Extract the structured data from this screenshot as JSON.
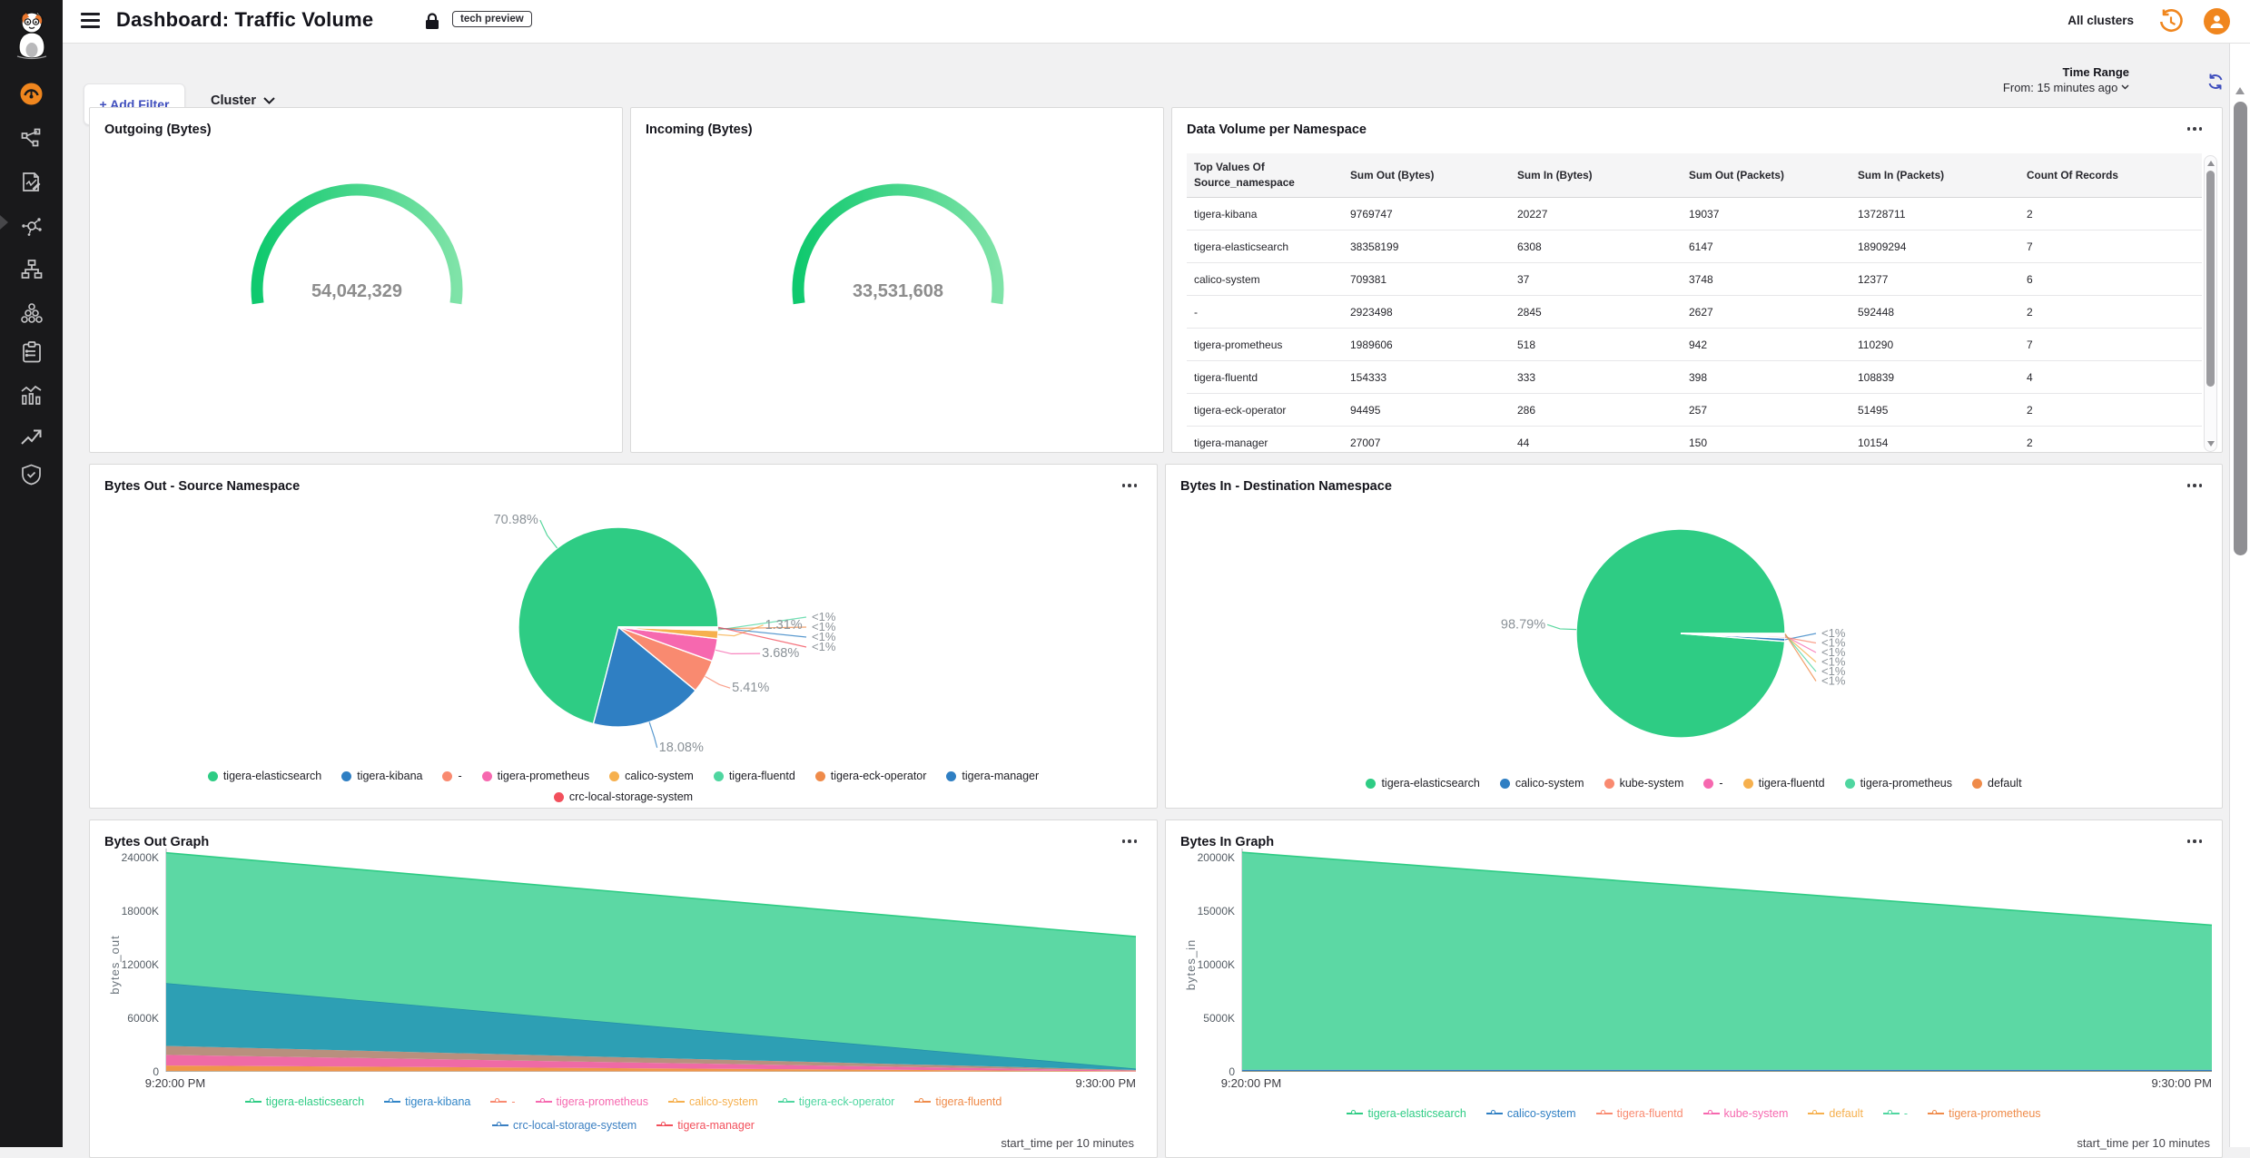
{
  "header": {
    "title": "Dashboard: Traffic Volume",
    "badge": "tech preview",
    "all_clusters": "All clusters",
    "icons": [
      "menu-icon",
      "lock-icon",
      "history-icon",
      "user-avatar-icon"
    ]
  },
  "sidebar": {
    "icons": [
      {
        "name": "calico-cat-logo",
        "active": false
      },
      {
        "name": "dashboards-icon",
        "active": true
      },
      {
        "name": "service-graph-icon",
        "active": false
      },
      {
        "name": "policies-icon",
        "active": false
      },
      {
        "name": "flow-visualizations-icon",
        "active": false
      },
      {
        "name": "network-topology-icon",
        "active": false
      },
      {
        "name": "clusters-icon",
        "active": false
      },
      {
        "name": "compliance-reports-icon",
        "active": false
      },
      {
        "name": "statistics-icon",
        "active": false
      },
      {
        "name": "trends-icon",
        "active": false
      },
      {
        "name": "security-shield-icon",
        "active": false
      }
    ]
  },
  "filter_bar": {
    "add_filter": "+ Add Filter",
    "cluster": "Cluster",
    "time_range_label": "Time Range",
    "time_range_value": "From: 15 minutes ago"
  },
  "table": {
    "title": "Data Volume per Namespace",
    "columns": [
      "Top Values Of Source_namespace",
      "Sum Out (Bytes)",
      "Sum In (Bytes)",
      "Sum Out (Packets)",
      "Sum In (Packets)",
      "Count Of Records"
    ],
    "rows": [
      [
        "tigera-kibana",
        "9769747",
        "20227",
        "19037",
        "13728711",
        "2"
      ],
      [
        "tigera-elasticsearch",
        "38358199",
        "6308",
        "6147",
        "18909294",
        "7"
      ],
      [
        "calico-system",
        "709381",
        "37",
        "3748",
        "12377",
        "6"
      ],
      [
        "-",
        "2923498",
        "2845",
        "2627",
        "592448",
        "2"
      ],
      [
        "tigera-prometheus",
        "1989606",
        "518",
        "942",
        "110290",
        "7"
      ],
      [
        "tigera-fluentd",
        "154333",
        "333",
        "398",
        "108839",
        "4"
      ],
      [
        "tigera-eck-operator",
        "94495",
        "286",
        "257",
        "51495",
        "2"
      ],
      [
        "tigera-manager",
        "27007",
        "44",
        "150",
        "10154",
        "2"
      ]
    ]
  },
  "chart_data": [
    {
      "type": "gauge",
      "title": "Outgoing (Bytes)",
      "value": 54042329,
      "display_value": "54,042,329",
      "color_start": "#0fc96e",
      "color_end": "#7fe3a8"
    },
    {
      "type": "gauge",
      "title": "Incoming (Bytes)",
      "value": 33531608,
      "display_value": "33,531,608",
      "color_start": "#0fc96e",
      "color_end": "#7fe3a8"
    },
    {
      "type": "pie",
      "title": "Bytes Out - Source Namespace",
      "slices": [
        {
          "label": "tigera-elasticsearch",
          "pct": 70.98,
          "pct_label": "70.98%",
          "color": "#2ecc84"
        },
        {
          "label": "tigera-kibana",
          "pct": 18.08,
          "pct_label": "18.08%",
          "color": "#2f7fc3"
        },
        {
          "label": "-",
          "pct": 5.41,
          "pct_label": "5.41%",
          "color": "#f98a70"
        },
        {
          "label": "tigera-prometheus",
          "pct": 3.68,
          "pct_label": "3.68%",
          "color": "#f668af"
        },
        {
          "label": "calico-system",
          "pct": 1.31,
          "pct_label": "1.31%",
          "color": "#f6b04e"
        },
        {
          "label": "tigera-fluentd",
          "pct": 0.2,
          "pct_label": "<1%",
          "color": "#4fd6a0"
        },
        {
          "label": "tigera-eck-operator",
          "pct": 0.15,
          "pct_label": "<1%",
          "color": "#ef8b4a"
        },
        {
          "label": "tigera-manager",
          "pct": 0.11,
          "pct_label": "<1%",
          "color": "#2f7fc3"
        },
        {
          "label": "crc-local-storage-system",
          "pct": 0.1,
          "pct_label": "<1%",
          "color": "#f2505c"
        }
      ],
      "legend_rows": [
        [
          {
            "label": "tigera-elasticsearch",
            "color": "#2ecc84"
          },
          {
            "label": "tigera-kibana",
            "color": "#2f7fc3"
          },
          {
            "label": "-",
            "color": "#f98a70"
          },
          {
            "label": "tigera-prometheus",
            "color": "#f668af"
          },
          {
            "label": "calico-system",
            "color": "#f6b04e"
          },
          {
            "label": "tigera-fluentd",
            "color": "#4fd6a0"
          },
          {
            "label": "tigera-eck-operator",
            "color": "#ef8b4a"
          },
          {
            "label": "tigera-manager",
            "color": "#2f7fc3"
          }
        ],
        [
          {
            "label": "crc-local-storage-system",
            "color": "#f2505c"
          }
        ]
      ]
    },
    {
      "type": "pie",
      "title": "Bytes In - Destination Namespace",
      "slices": [
        {
          "label": "tigera-elasticsearch",
          "pct": 98.79,
          "pct_label": "98.79%",
          "color": "#2ecc84"
        },
        {
          "label": "calico-system",
          "pct": 0.5,
          "pct_label": "<1%",
          "color": "#2f7fc3"
        },
        {
          "label": "kube-system",
          "pct": 0.25,
          "pct_label": "<1%",
          "color": "#f98a70"
        },
        {
          "label": "-",
          "pct": 0.15,
          "pct_label": "<1%",
          "color": "#f668af"
        },
        {
          "label": "tigera-fluentd",
          "pct": 0.12,
          "pct_label": "<1%",
          "color": "#f6b04e"
        },
        {
          "label": "tigera-prometheus",
          "pct": 0.1,
          "pct_label": "<1%",
          "color": "#4fd6a0"
        },
        {
          "label": "default",
          "pct": 0.09,
          "pct_label": "<1%",
          "color": "#ef8b4a"
        }
      ],
      "legend_rows": [
        [
          {
            "label": "tigera-elasticsearch",
            "color": "#2ecc84"
          },
          {
            "label": "calico-system",
            "color": "#2f7fc3"
          },
          {
            "label": "kube-system",
            "color": "#f98a70"
          },
          {
            "label": "-",
            "color": "#f668af"
          },
          {
            "label": "tigera-fluentd",
            "color": "#f6b04e"
          },
          {
            "label": "tigera-prometheus",
            "color": "#4fd6a0"
          },
          {
            "label": "default",
            "color": "#ef8b4a"
          }
        ]
      ]
    },
    {
      "type": "area",
      "title": "Bytes Out Graph",
      "ylabel": "bytes_out",
      "xlabel": "start_time per 10 minutes",
      "x_labels": [
        "9:20:00 PM",
        "9:30:00 PM"
      ],
      "y_max_k": 24000,
      "y_ticks": [
        {
          "label": "0",
          "value_k": 0
        },
        {
          "label": "6000K",
          "value_k": 6000
        },
        {
          "label": "12000K",
          "value_k": 12000
        },
        {
          "label": "18000K",
          "value_k": 18000
        },
        {
          "label": "24000K",
          "value_k": 24000
        }
      ],
      "series": [
        {
          "name": "tigera-manager",
          "color": "#c0504a",
          "values_k": [
            25,
            8
          ]
        },
        {
          "name": "crc-local-storage-system",
          "color": "#3a7fc2",
          "values_k": [
            20,
            8
          ]
        },
        {
          "name": "tigera-fluentd",
          "color": "#ef8b4a",
          "values_k": [
            25,
            8
          ]
        },
        {
          "name": "tigera-eck-operator",
          "color": "#4fd6a0",
          "values_k": [
            20,
            8
          ]
        },
        {
          "name": "calico-system",
          "color": "#f0964a",
          "values_k": [
            610,
            30
          ]
        },
        {
          "name": "tigera-prometheus",
          "color": "#ef6aa5",
          "values_k": [
            1200,
            60
          ]
        },
        {
          "name": "-",
          "color": "#b8907e",
          "values_k": [
            1000,
            80
          ]
        },
        {
          "name": "tigera-kibana",
          "color": "#2d9fb4",
          "edge": "#2391a8",
          "values_k": [
            7040,
            160
          ]
        },
        {
          "name": "tigera-elasticsearch",
          "color": "#5cd8a4",
          "edge": "#2ecc84",
          "values_k": [
            14600,
            14780
          ]
        }
      ],
      "legend_rows": [
        [
          {
            "label": "tigera-elasticsearch",
            "color": "#2ecc84"
          },
          {
            "label": "tigera-kibana",
            "color": "#3185c7"
          },
          {
            "label": "-",
            "color": "#f98a70"
          },
          {
            "label": "tigera-prometheus",
            "color": "#f668af"
          },
          {
            "label": "calico-system",
            "color": "#f6b04e"
          },
          {
            "label": "tigera-eck-operator",
            "color": "#4fd6a0"
          },
          {
            "label": "tigera-fluentd",
            "color": "#ef8b4a"
          }
        ],
        [
          {
            "label": "crc-local-storage-system",
            "color": "#3a7fc2"
          },
          {
            "label": "tigera-manager",
            "color": "#f2505c"
          }
        ]
      ]
    },
    {
      "type": "area",
      "title": "Bytes In Graph",
      "ylabel": "bytes_in",
      "xlabel": "start_time per 10 minutes",
      "x_labels": [
        "9:20:00 PM",
        "9:30:00 PM"
      ],
      "y_max_k": 20000,
      "y_ticks": [
        {
          "label": "0",
          "value_k": 0
        },
        {
          "label": "5000K",
          "value_k": 5000
        },
        {
          "label": "10000K",
          "value_k": 10000
        },
        {
          "label": "15000K",
          "value_k": 15000
        },
        {
          "label": "20000K",
          "value_k": 20000
        }
      ],
      "series": [
        {
          "name": "tigera-prometheus",
          "color": "#e8a33d",
          "values_k": [
            40,
            40
          ]
        },
        {
          "name": "calico-system",
          "color": "#2f7fc3",
          "values_k": [
            150,
            150
          ]
        },
        {
          "name": "tigera-elasticsearch",
          "color": "#5cd8a4",
          "edge": "#2ecc84",
          "values_k": [
            20300,
            13500
          ]
        }
      ],
      "legend_rows": [
        [
          {
            "label": "tigera-elasticsearch",
            "color": "#2ecc84"
          },
          {
            "label": "calico-system",
            "color": "#2f7fc3"
          },
          {
            "label": "tigera-fluentd",
            "color": "#f98a70"
          },
          {
            "label": "kube-system",
            "color": "#f668af"
          },
          {
            "label": "default",
            "color": "#f6b04e"
          },
          {
            "label": "-",
            "color": "#4fd6a0"
          },
          {
            "label": "tigera-prometheus",
            "color": "#ef8b4a"
          }
        ]
      ]
    }
  ]
}
